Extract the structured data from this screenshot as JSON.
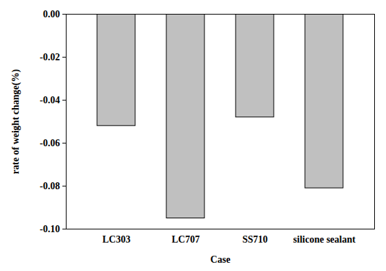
{
  "chart_data": {
    "type": "bar",
    "x_label": "Case",
    "y_label": "rate of weight change(%)",
    "categories": [
      "LC303",
      "LC707",
      "SS710",
      "silicone sealant"
    ],
    "values": [
      -0.052,
      -0.095,
      -0.048,
      -0.081
    ],
    "color": "#c0c0c0",
    "ylim": [
      -0.1,
      0.0
    ],
    "yticks": [
      {
        "value": -0.1,
        "label": "-0.10"
      },
      {
        "value": -0.08,
        "label": "-0.08"
      },
      {
        "value": -0.06,
        "label": "-0.06"
      },
      {
        "value": -0.04,
        "label": "-0.04"
      },
      {
        "value": -0.02,
        "label": "-0.02"
      },
      {
        "value": 0.0,
        "label": "0.00"
      }
    ],
    "grid": false
  }
}
